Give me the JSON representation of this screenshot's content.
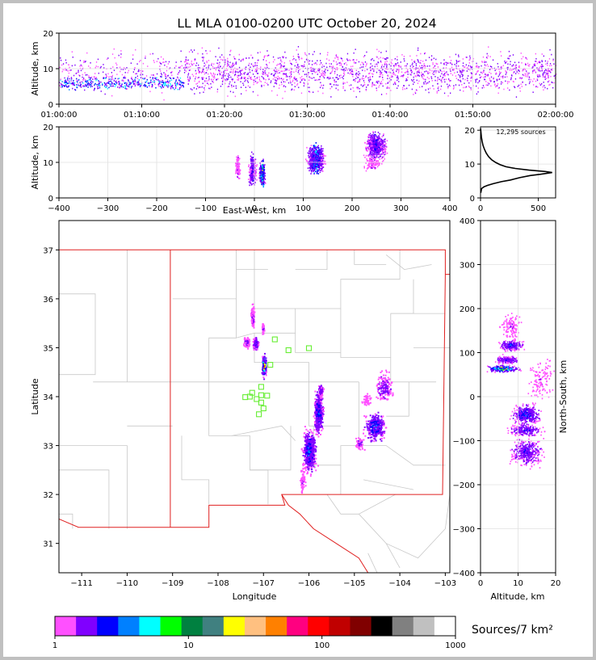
{
  "title": "LL MLA 0100-0200 UTC October 20, 2024",
  "chart_data": [
    {
      "type": "heatmap",
      "name": "altitude-time",
      "ylabel": "Altitude, km",
      "ylim": [
        0,
        20
      ],
      "yticks": [
        0,
        10,
        20
      ],
      "xlim_minutes": [
        0,
        60
      ],
      "xticks": [
        "01:00:00",
        "01:10:00",
        "01:20:00",
        "01:30:00",
        "01:40:00",
        "01:50:00",
        "02:00:00"
      ],
      "grid": true
    },
    {
      "type": "heatmap",
      "name": "east-west-altitude",
      "xlabel": "East-West, km",
      "ylabel": "Altitude, km",
      "xlim": [
        -400,
        400
      ],
      "ylim": [
        0,
        20
      ],
      "xticks": [
        -400,
        -300,
        -200,
        -100,
        0,
        100,
        200,
        300,
        400
      ],
      "yticks": [
        0,
        10,
        20
      ],
      "grid": true
    },
    {
      "type": "line",
      "name": "altitude-histogram",
      "annotation": "12,295 sources",
      "xlim": [
        0,
        650
      ],
      "ylim": [
        0,
        21
      ],
      "xticks": [
        0,
        500
      ],
      "yticks": [
        0,
        10,
        20
      ],
      "points": [
        [
          2,
          1.5
        ],
        [
          10,
          2.8
        ],
        [
          30,
          3.3
        ],
        [
          60,
          3.7
        ],
        [
          110,
          4.2
        ],
        [
          180,
          4.8
        ],
        [
          260,
          5.3
        ],
        [
          340,
          6.0
        ],
        [
          430,
          6.6
        ],
        [
          520,
          7.0
        ],
        [
          620,
          7.5
        ],
        [
          560,
          7.8
        ],
        [
          420,
          8.2
        ],
        [
          300,
          8.7
        ],
        [
          220,
          9.2
        ],
        [
          170,
          9.8
        ],
        [
          130,
          10.5
        ],
        [
          95,
          11.3
        ],
        [
          70,
          12.2
        ],
        [
          50,
          13.2
        ],
        [
          35,
          14.3
        ],
        [
          22,
          15.5
        ],
        [
          14,
          16.7
        ],
        [
          8,
          18.0
        ],
        [
          4,
          19.2
        ],
        [
          1,
          20.5
        ]
      ],
      "grid": true
    },
    {
      "type": "heatmap",
      "name": "plan-view",
      "xlabel": "Longitude",
      "ylabel": "Latitude",
      "xlim": [
        -111.5,
        -102.9
      ],
      "ylim": [
        30.4,
        37.6
      ],
      "xticks": [
        -111,
        -110,
        -109,
        -108,
        -107,
        -106,
        -105,
        -104,
        -103
      ],
      "yticks": [
        31,
        32,
        33,
        34,
        35,
        36,
        37
      ],
      "stations": [
        [
          -106.75,
          35.17
        ],
        [
          -106.45,
          34.95
        ],
        [
          -106.0,
          34.99
        ],
        [
          -106.85,
          34.65
        ],
        [
          -107.05,
          34.2
        ],
        [
          -107.25,
          34.08
        ],
        [
          -107.15,
          33.95
        ],
        [
          -107.05,
          34.03
        ],
        [
          -106.92,
          34.02
        ],
        [
          -107.3,
          34.0
        ],
        [
          -107.05,
          33.88
        ],
        [
          -107.0,
          33.76
        ],
        [
          -107.1,
          33.64
        ],
        [
          -107.4,
          33.99
        ]
      ],
      "grid": true
    },
    {
      "type": "heatmap",
      "name": "north-south-altitude",
      "xlabel": "Altitude, km",
      "ylabel": "North-South, km",
      "xlim": [
        0,
        20
      ],
      "ylim": [
        -400,
        400
      ],
      "xticks": [
        0,
        10,
        20
      ],
      "yticks": [
        -400,
        -300,
        -200,
        -100,
        0,
        100,
        200,
        300,
        400
      ],
      "grid": true
    },
    {
      "type": "colorbar",
      "name": "density-colorbar",
      "label": "Sources/7 km²",
      "ticks": [
        "1",
        "10",
        "100",
        "1000"
      ],
      "colors": [
        "#ff50ff",
        "#8000ff",
        "#0000ff",
        "#0080ff",
        "#00ffff",
        "#00ff00",
        "#008040",
        "#408080",
        "#ffff00",
        "#ffc080",
        "#ff8000",
        "#ff0080",
        "#ff0000",
        "#c00000",
        "#800000",
        "#000000",
        "#808080",
        "#c0c0c0",
        "#ffffff"
      ]
    }
  ]
}
